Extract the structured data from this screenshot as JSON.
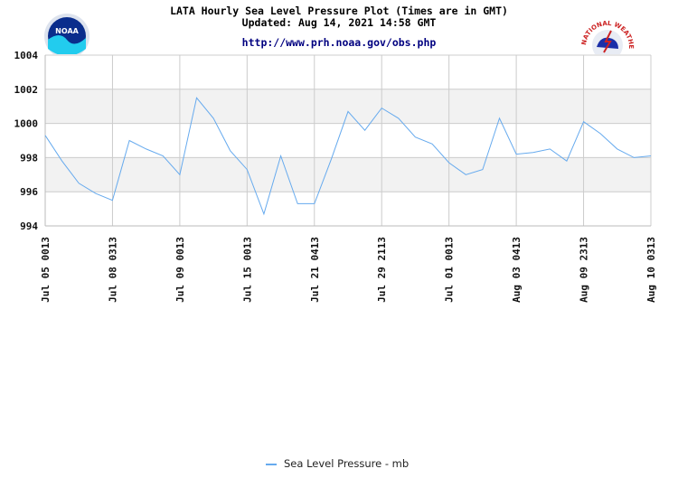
{
  "header": {
    "title": "LATA Hourly Sea Level Pressure Plot (Times are in GMT)",
    "updated": "Updated: Aug 14, 2021 14:58 GMT",
    "url": "http://www.prh.noaa.gov/obs.php"
  },
  "logos": {
    "noaa_text": "NOAA",
    "nws_text": "NATIONAL WEATHER SERVICE"
  },
  "colors": {
    "line": "#66aaee",
    "band": "#f2f2f2",
    "grid": "#cccccc"
  },
  "chart_data": {
    "type": "line",
    "grid": true,
    "legend": "bottom-center",
    "ylim": [
      994,
      1004
    ],
    "yticks": [
      994,
      996,
      998,
      1000,
      1002,
      1004
    ],
    "xticklabels": [
      "Jul 05 0013",
      "Jul 08 0313",
      "Jul 09 0013",
      "Jul 15 0013",
      "Jul 21 0413",
      "Jul 29 2113",
      "Jul 01 0013",
      "Aug 03 0413",
      "Aug 09 2313",
      "Aug 10 0313"
    ],
    "series": [
      {
        "name": "Sea Level Pressure - mb",
        "values": [
          999.3,
          997.8,
          996.5,
          995.9,
          995.5,
          999.0,
          998.5,
          998.1,
          997.0,
          1001.5,
          1000.3,
          998.4,
          997.3,
          994.7,
          998.1,
          995.3,
          995.3,
          997.9,
          1000.7,
          999.6,
          1000.9,
          1000.3,
          999.2,
          998.8,
          997.7,
          997.0,
          997.3,
          1000.3,
          998.2,
          998.3,
          998.5,
          997.8,
          1000.1,
          999.4,
          998.5,
          998.0,
          998.1
        ]
      }
    ]
  }
}
